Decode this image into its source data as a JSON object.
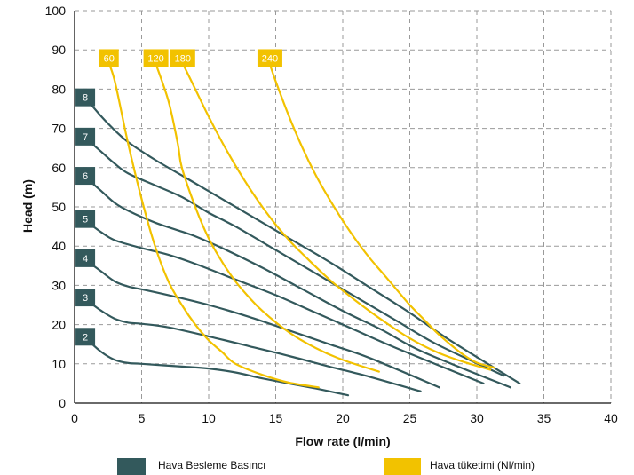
{
  "chart_data": {
    "type": "line",
    "xlabel": "Flow rate (l/min)",
    "ylabel": "Head (m)",
    "xlim": [
      0,
      40
    ],
    "ylim": [
      0,
      100
    ],
    "xticks": [
      0,
      5,
      10,
      15,
      20,
      25,
      30,
      35,
      40
    ],
    "yticks": [
      0,
      10,
      20,
      30,
      40,
      50,
      60,
      70,
      80,
      90,
      100
    ],
    "grid": true,
    "colors": {
      "pressure": "#33595c",
      "consumption": "#f2c200"
    },
    "legend": {
      "placement": "bottom",
      "pressure": "Hava Besleme Basıncı",
      "consumption": "Hava tüketimi  (Nl/min)"
    },
    "pressure_series": [
      {
        "label": "2",
        "points": [
          [
            1,
            16
          ],
          [
            2,
            13
          ],
          [
            3,
            11
          ],
          [
            4,
            10.2
          ],
          [
            5,
            10
          ],
          [
            8,
            9.3
          ],
          [
            10,
            8.8
          ],
          [
            12,
            7.8
          ],
          [
            14,
            6.3
          ],
          [
            16,
            5
          ],
          [
            18,
            3.7
          ],
          [
            20.4,
            2
          ]
        ]
      },
      {
        "label": "3",
        "points": [
          [
            1,
            26
          ],
          [
            2,
            23.5
          ],
          [
            3,
            21.5
          ],
          [
            4,
            20.5
          ],
          [
            5,
            20.2
          ],
          [
            7,
            19.3
          ],
          [
            10,
            17
          ],
          [
            13,
            14.5
          ],
          [
            16,
            12
          ],
          [
            19,
            9.3
          ],
          [
            22,
            6.7
          ],
          [
            25.8,
            3
          ]
        ]
      },
      {
        "label": "4",
        "points": [
          [
            1,
            36
          ],
          [
            2,
            33.5
          ],
          [
            3,
            31
          ],
          [
            4,
            29.7
          ],
          [
            5,
            29
          ],
          [
            7,
            27.5
          ],
          [
            10,
            25
          ],
          [
            13,
            22
          ],
          [
            16,
            18.5
          ],
          [
            19,
            15
          ],
          [
            22,
            11.5
          ],
          [
            27.2,
            4
          ]
        ]
      },
      {
        "label": "5",
        "points": [
          [
            1,
            46
          ],
          [
            2,
            43.5
          ],
          [
            3,
            41.5
          ],
          [
            5,
            39.5
          ],
          [
            7,
            37.8
          ],
          [
            9,
            35.5
          ],
          [
            12,
            31.5
          ],
          [
            15,
            27.5
          ],
          [
            18,
            23
          ],
          [
            21,
            18.5
          ],
          [
            24,
            14
          ],
          [
            30.5,
            5
          ]
        ]
      },
      {
        "label": "6",
        "points": [
          [
            1,
            57
          ],
          [
            2,
            54
          ],
          [
            3,
            51
          ],
          [
            4,
            49
          ],
          [
            6,
            46
          ],
          [
            8,
            43.7
          ],
          [
            9,
            42.5
          ],
          [
            11,
            39.5
          ],
          [
            14,
            34.5
          ],
          [
            17,
            29
          ],
          [
            20,
            23.5
          ],
          [
            23,
            18.5
          ],
          [
            26,
            13
          ],
          [
            32.5,
            4
          ]
        ]
      },
      {
        "label": "7",
        "points": [
          [
            1,
            67
          ],
          [
            2,
            64
          ],
          [
            3,
            61
          ],
          [
            4,
            58.5
          ],
          [
            6,
            55.5
          ],
          [
            8,
            52.5
          ],
          [
            10,
            48.5
          ],
          [
            12,
            45
          ],
          [
            15,
            39
          ],
          [
            18,
            33
          ],
          [
            21,
            27
          ],
          [
            24,
            21
          ],
          [
            27,
            15
          ],
          [
            32,
            7
          ]
        ]
      },
      {
        "label": "8",
        "points": [
          [
            1,
            77
          ],
          [
            2,
            73
          ],
          [
            3,
            69.5
          ],
          [
            4,
            66.5
          ],
          [
            6,
            62
          ],
          [
            8,
            58
          ],
          [
            10,
            54
          ],
          [
            13,
            48
          ],
          [
            16,
            42
          ],
          [
            19,
            36
          ],
          [
            22,
            29.5
          ],
          [
            25,
            23
          ],
          [
            28,
            16
          ],
          [
            33.2,
            5
          ]
        ]
      }
    ],
    "consumption_series": [
      {
        "label": "60",
        "points": [
          [
            2.5,
            87
          ],
          [
            3,
            82
          ],
          [
            4,
            66
          ],
          [
            5,
            52
          ],
          [
            6,
            40
          ],
          [
            7,
            31
          ],
          [
            8,
            25
          ],
          [
            9,
            20
          ],
          [
            10,
            16
          ],
          [
            11,
            13
          ],
          [
            12,
            10
          ],
          [
            14,
            7.2
          ],
          [
            16,
            5.2
          ],
          [
            18.2,
            4
          ]
        ]
      },
      {
        "label": "120",
        "points": [
          [
            6,
            87
          ],
          [
            7,
            77
          ],
          [
            7.7,
            66
          ],
          [
            8,
            60
          ],
          [
            9,
            50
          ],
          [
            10,
            42
          ],
          [
            11,
            36
          ],
          [
            12,
            31
          ],
          [
            13,
            27
          ],
          [
            14,
            23.5
          ],
          [
            16,
            18
          ],
          [
            18,
            14
          ],
          [
            20,
            11
          ],
          [
            22.7,
            8
          ]
        ]
      },
      {
        "label": "180",
        "points": [
          [
            8,
            87
          ],
          [
            9,
            80
          ],
          [
            10,
            73
          ],
          [
            11,
            66.5
          ],
          [
            12,
            60.5
          ],
          [
            13,
            55
          ],
          [
            14,
            50
          ],
          [
            15,
            45.5
          ],
          [
            16,
            41.5
          ],
          [
            17,
            38
          ],
          [
            19,
            31.5
          ],
          [
            21,
            26
          ],
          [
            23,
            21
          ],
          [
            25,
            16.5
          ],
          [
            27,
            13
          ],
          [
            29,
            10.5
          ],
          [
            31,
            8.5
          ]
        ]
      },
      {
        "label": "240",
        "points": [
          [
            14.5,
            87
          ],
          [
            15,
            82
          ],
          [
            16,
            73
          ],
          [
            17,
            65
          ],
          [
            18,
            58
          ],
          [
            19,
            52
          ],
          [
            20,
            46.5
          ],
          [
            21,
            41.5
          ],
          [
            22,
            37
          ],
          [
            23,
            33
          ],
          [
            24,
            29
          ],
          [
            25,
            25
          ],
          [
            26,
            21.5
          ],
          [
            27,
            18
          ],
          [
            28,
            15
          ],
          [
            29,
            12.3
          ],
          [
            30,
            10.3
          ],
          [
            31.3,
            9
          ]
        ]
      }
    ]
  }
}
